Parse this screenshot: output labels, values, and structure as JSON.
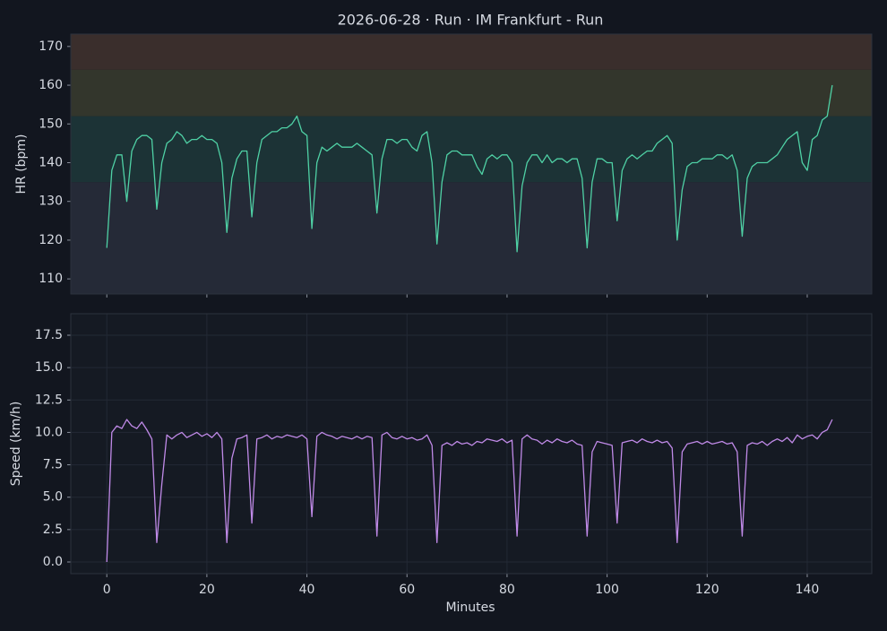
{
  "chart_data": [
    {
      "type": "line",
      "title": "2026-06-28 · Run · IM Frankfurt - Run",
      "ylabel": "HR (bpm)",
      "xlim": [
        -7.2,
        152.9
      ],
      "xticks": [
        0,
        20,
        40,
        60,
        80,
        100,
        120,
        140
      ],
      "ylim": [
        106.1,
        173.2
      ],
      "yticks": [
        110,
        120,
        130,
        140,
        150,
        160,
        170
      ],
      "grid": false,
      "zones": [
        {
          "from": 106.1,
          "to": 135,
          "color": "#252a37"
        },
        {
          "from": 135,
          "to": 152,
          "color": "#1c3336"
        },
        {
          "from": 152,
          "to": 164,
          "color": "#33362c"
        },
        {
          "from": 164,
          "to": 173.2,
          "color": "#3a2e2c"
        }
      ],
      "x": [
        0,
        1,
        2,
        3,
        4,
        5,
        6,
        7,
        8,
        9,
        10,
        11,
        12,
        13,
        14,
        15,
        16,
        17,
        18,
        19,
        20,
        21,
        22,
        23,
        24,
        25,
        26,
        27,
        28,
        29,
        30,
        31,
        32,
        33,
        34,
        35,
        36,
        37,
        38,
        39,
        40,
        41,
        42,
        43,
        44,
        45,
        46,
        47,
        48,
        49,
        50,
        51,
        52,
        53,
        54,
        55,
        56,
        57,
        58,
        59,
        60,
        61,
        62,
        63,
        64,
        65,
        66,
        67,
        68,
        69,
        70,
        71,
        72,
        73,
        74,
        75,
        76,
        77,
        78,
        79,
        80,
        81,
        82,
        83,
        84,
        85,
        86,
        87,
        88,
        89,
        90,
        91,
        92,
        93,
        94,
        95,
        96,
        97,
        98,
        99,
        100,
        101,
        102,
        103,
        104,
        105,
        106,
        107,
        108,
        109,
        110,
        111,
        112,
        113,
        114,
        115,
        116,
        117,
        118,
        119,
        120,
        121,
        122,
        123,
        124,
        125,
        126,
        127,
        128,
        129,
        130,
        131,
        132,
        133,
        134,
        135,
        136,
        137,
        138,
        139,
        140,
        141,
        142,
        143,
        144,
        145
      ],
      "series": [
        {
          "name": "HR",
          "color": "#4fd1a5",
          "values": [
            118,
            138,
            142,
            142,
            130,
            143,
            146,
            147,
            147,
            146,
            128,
            140,
            145,
            146,
            148,
            147,
            145,
            146,
            146,
            147,
            146,
            146,
            145,
            140,
            122,
            136,
            141,
            143,
            143,
            126,
            140,
            146,
            147,
            148,
            148,
            149,
            149,
            150,
            152,
            148,
            147,
            123,
            140,
            144,
            143,
            144,
            145,
            144,
            144,
            144,
            145,
            144,
            143,
            142,
            127,
            141,
            146,
            146,
            145,
            146,
            146,
            144,
            143,
            147,
            148,
            140,
            119,
            135,
            142,
            143,
            143,
            142,
            142,
            142,
            139,
            137,
            141,
            142,
            141,
            142,
            142,
            140,
            117,
            134,
            140,
            142,
            142,
            140,
            142,
            140,
            141,
            141,
            140,
            141,
            141,
            136,
            118,
            135,
            141,
            141,
            140,
            140,
            125,
            138,
            141,
            142,
            141,
            142,
            143,
            143,
            145,
            146,
            147,
            145,
            120,
            133,
            139,
            140,
            140,
            141,
            141,
            141,
            142,
            142,
            141,
            142,
            138,
            121,
            136,
            139,
            140,
            140,
            140,
            141,
            142,
            144,
            146,
            147,
            148,
            140,
            138,
            146,
            147,
            151,
            152,
            160
          ]
        }
      ]
    },
    {
      "type": "line",
      "xlabel": "Minutes",
      "ylabel": "Speed (km/h)",
      "xlim": [
        -7.2,
        152.9
      ],
      "xticks": [
        0,
        20,
        40,
        60,
        80,
        100,
        120,
        140
      ],
      "ylim": [
        -0.9,
        19.16
      ],
      "yticks": [
        {
          "value": 0,
          "label": "0.0"
        },
        2.5,
        {
          "value": 5,
          "label": "5.0"
        },
        7.5,
        {
          "value": 10,
          "label": "10.0"
        },
        12.5,
        {
          "value": 15,
          "label": "15.0"
        },
        17.5
      ],
      "grid": true,
      "x": [
        0,
        1,
        2,
        3,
        4,
        5,
        6,
        7,
        8,
        9,
        10,
        11,
        12,
        13,
        14,
        15,
        16,
        17,
        18,
        19,
        20,
        21,
        22,
        23,
        24,
        25,
        26,
        27,
        28,
        29,
        30,
        31,
        32,
        33,
        34,
        35,
        36,
        37,
        38,
        39,
        40,
        41,
        42,
        43,
        44,
        45,
        46,
        47,
        48,
        49,
        50,
        51,
        52,
        53,
        54,
        55,
        56,
        57,
        58,
        59,
        60,
        61,
        62,
        63,
        64,
        65,
        66,
        67,
        68,
        69,
        70,
        71,
        72,
        73,
        74,
        75,
        76,
        77,
        78,
        79,
        80,
        81,
        82,
        83,
        84,
        85,
        86,
        87,
        88,
        89,
        90,
        91,
        92,
        93,
        94,
        95,
        96,
        97,
        98,
        99,
        100,
        101,
        102,
        103,
        104,
        105,
        106,
        107,
        108,
        109,
        110,
        111,
        112,
        113,
        114,
        115,
        116,
        117,
        118,
        119,
        120,
        121,
        122,
        123,
        124,
        125,
        126,
        127,
        128,
        129,
        130,
        131,
        132,
        133,
        134,
        135,
        136,
        137,
        138,
        139,
        140,
        141,
        142,
        143,
        144,
        145
      ],
      "series": [
        {
          "name": "Speed",
          "color": "#c08ae8",
          "values": [
            0,
            10,
            10.5,
            10.3,
            11,
            10.5,
            10.3,
            10.8,
            10.2,
            9.5,
            1.5,
            6,
            9.8,
            9.5,
            9.8,
            10,
            9.6,
            9.8,
            10,
            9.7,
            9.9,
            9.6,
            10,
            9.5,
            1.5,
            8,
            9.5,
            9.6,
            9.8,
            3,
            9.5,
            9.6,
            9.8,
            9.5,
            9.7,
            9.6,
            9.8,
            9.7,
            9.6,
            9.8,
            9.5,
            3.5,
            9.7,
            10,
            9.8,
            9.7,
            9.5,
            9.7,
            9.6,
            9.5,
            9.7,
            9.5,
            9.7,
            9.6,
            2,
            9.8,
            10,
            9.6,
            9.5,
            9.7,
            9.5,
            9.6,
            9.4,
            9.5,
            9.8,
            9,
            1.5,
            9,
            9.2,
            9,
            9.3,
            9.1,
            9.2,
            9,
            9.3,
            9.2,
            9.5,
            9.4,
            9.3,
            9.5,
            9.2,
            9.4,
            2,
            9.5,
            9.8,
            9.5,
            9.4,
            9.1,
            9.4,
            9.2,
            9.5,
            9.3,
            9.2,
            9.4,
            9.1,
            9,
            2,
            8.5,
            9.3,
            9.2,
            9.1,
            9,
            3,
            9.2,
            9.3,
            9.4,
            9.2,
            9.5,
            9.3,
            9.2,
            9.4,
            9.2,
            9.3,
            8.8,
            1.5,
            8.5,
            9.1,
            9.2,
            9.3,
            9.1,
            9.3,
            9.1,
            9.2,
            9.3,
            9.1,
            9.2,
            8.5,
            2,
            9,
            9.2,
            9.1,
            9.3,
            9,
            9.3,
            9.5,
            9.3,
            9.6,
            9.2,
            9.8,
            9.5,
            9.7,
            9.8,
            9.5,
            10,
            10.2,
            11
          ]
        }
      ]
    }
  ]
}
